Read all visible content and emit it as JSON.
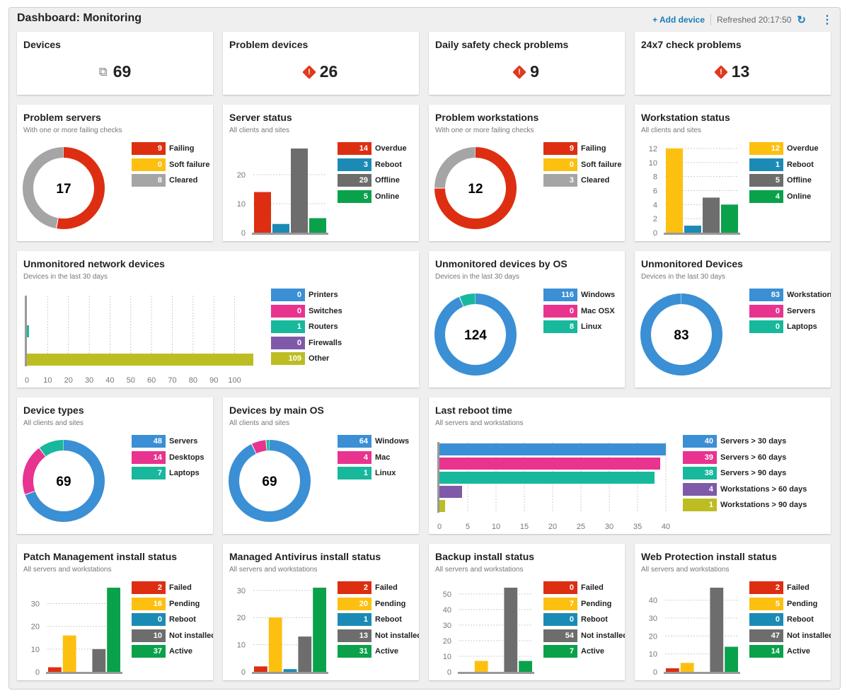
{
  "header": {
    "title": "Dashboard: Monitoring",
    "add_device": "+ Add device",
    "refreshed": "Refreshed 20:17:50",
    "refresh_icon": "refresh-icon",
    "menu_icon": "kebab-icon"
  },
  "colors": {
    "red": "#dd2e12",
    "yellow": "#fdc010",
    "teal_blue": "#1b8bb5",
    "gray": "#6d6d6d",
    "green": "#0aa14b",
    "light_gray": "#a5a5a5",
    "blue": "#3b8fd4",
    "pink": "#e8338f",
    "teal": "#17b89c",
    "purple": "#7e5aa8",
    "olive": "#bcbd22"
  },
  "widgets": [
    {
      "type": "stat",
      "title": "Devices",
      "icon": "devices-icon",
      "value": "69"
    },
    {
      "type": "stat",
      "title": "Problem devices",
      "icon": "warning-icon",
      "value": "26"
    },
    {
      "type": "stat",
      "title": "Daily safety check problems",
      "icon": "warning-icon",
      "value": "9"
    },
    {
      "type": "stat",
      "title": "24x7 check problems",
      "icon": "warning-icon",
      "value": "13"
    },
    {
      "type": "donut",
      "title": "Problem servers",
      "subtitle": "With one or more failing checks",
      "center": "17",
      "items": [
        {
          "label": "Failing",
          "value": 9,
          "color": "#dd2e12"
        },
        {
          "label": "Soft failure",
          "value": 0,
          "color": "#fdc010"
        },
        {
          "label": "Cleared",
          "value": 8,
          "color": "#a5a5a5"
        }
      ]
    },
    {
      "type": "vbar",
      "title": "Server status",
      "subtitle": "All clients and sites",
      "ticks": [
        0,
        10,
        20
      ],
      "items": [
        {
          "label": "Overdue",
          "value": 14,
          "color": "#dd2e12"
        },
        {
          "label": "Reboot",
          "value": 3,
          "color": "#1b8bb5"
        },
        {
          "label": "Offline",
          "value": 29,
          "color": "#6d6d6d"
        },
        {
          "label": "Online",
          "value": 5,
          "color": "#0aa14b"
        }
      ]
    },
    {
      "type": "donut",
      "title": "Problem workstations",
      "subtitle": "With one or more failing checks",
      "center": "12",
      "items": [
        {
          "label": "Failing",
          "value": 9,
          "color": "#dd2e12"
        },
        {
          "label": "Soft failure",
          "value": 0,
          "color": "#fdc010"
        },
        {
          "label": "Cleared",
          "value": 3,
          "color": "#a5a5a5"
        }
      ]
    },
    {
      "type": "vbar",
      "title": "Workstation status",
      "subtitle": "All clients and sites",
      "ticks": [
        0,
        2,
        4,
        6,
        8,
        10,
        12
      ],
      "items": [
        {
          "label": "Overdue",
          "value": 12,
          "color": "#fdc010"
        },
        {
          "label": "Reboot",
          "value": 1,
          "color": "#1b8bb5"
        },
        {
          "label": "Offline",
          "value": 5,
          "color": "#6d6d6d"
        },
        {
          "label": "Online",
          "value": 4,
          "color": "#0aa14b"
        }
      ]
    },
    {
      "type": "hbar",
      "title": "Unmonitored network devices",
      "subtitle": "Devices in the last 30 days",
      "xmax": 109,
      "ticks": [
        0,
        10,
        20,
        30,
        40,
        50,
        60,
        70,
        80,
        90,
        100
      ],
      "items": [
        {
          "label": "Printers",
          "value": 0,
          "color": "#3b8fd4"
        },
        {
          "label": "Switches",
          "value": 0,
          "color": "#e8338f"
        },
        {
          "label": "Routers",
          "value": 1,
          "color": "#17b89c"
        },
        {
          "label": "Firewalls",
          "value": 0,
          "color": "#7e5aa8"
        },
        {
          "label": "Other",
          "value": 109,
          "color": "#bcbd22"
        }
      ]
    },
    {
      "type": "donut",
      "title": "Unmonitored devices by OS",
      "subtitle": "Devices in the last 30 days",
      "center": "124",
      "items": [
        {
          "label": "Windows",
          "value": 116,
          "color": "#3b8fd4"
        },
        {
          "label": "Mac OSX",
          "value": 0,
          "color": "#e8338f"
        },
        {
          "label": "Linux",
          "value": 8,
          "color": "#17b89c"
        }
      ]
    },
    {
      "type": "donut",
      "title": "Unmonitored Devices",
      "subtitle": "Devices in the last 30 days",
      "center": "83",
      "items": [
        {
          "label": "Workstations",
          "value": 83,
          "color": "#3b8fd4"
        },
        {
          "label": "Servers",
          "value": 0,
          "color": "#e8338f"
        },
        {
          "label": "Laptops",
          "value": 0,
          "color": "#17b89c"
        }
      ]
    },
    {
      "type": "donut",
      "title": "Device types",
      "subtitle": "All clients and sites",
      "center": "69",
      "items": [
        {
          "label": "Servers",
          "value": 48,
          "color": "#3b8fd4"
        },
        {
          "label": "Desktops",
          "value": 14,
          "color": "#e8338f"
        },
        {
          "label": "Laptops",
          "value": 7,
          "color": "#17b89c"
        }
      ]
    },
    {
      "type": "donut",
      "title": "Devices by main OS",
      "subtitle": "All clients and sites",
      "center": "69",
      "items": [
        {
          "label": "Windows",
          "value": 64,
          "color": "#3b8fd4"
        },
        {
          "label": "Mac",
          "value": 4,
          "color": "#e8338f"
        },
        {
          "label": "Linux",
          "value": 1,
          "color": "#17b89c"
        }
      ]
    },
    {
      "type": "hbar",
      "title": "Last reboot time",
      "subtitle": "All servers and workstations",
      "xmax": 40,
      "ticks": [
        0,
        5,
        10,
        15,
        20,
        25,
        30,
        35,
        40
      ],
      "items": [
        {
          "label": "Servers > 30 days",
          "value": 40,
          "color": "#3b8fd4"
        },
        {
          "label": "Servers > 60 days",
          "value": 39,
          "color": "#e8338f"
        },
        {
          "label": "Servers > 90 days",
          "value": 38,
          "color": "#17b89c"
        },
        {
          "label": "Workstations > 60 days",
          "value": 4,
          "color": "#7e5aa8"
        },
        {
          "label": "Workstations > 90 days",
          "value": 1,
          "color": "#bcbd22"
        }
      ]
    },
    {
      "type": "vbar",
      "title": "Patch Management install status",
      "subtitle": "All servers and workstations",
      "ticks": [
        0,
        10,
        20,
        30
      ],
      "items": [
        {
          "label": "Failed",
          "value": 2,
          "color": "#dd2e12"
        },
        {
          "label": "Pending",
          "value": 16,
          "color": "#fdc010"
        },
        {
          "label": "Reboot",
          "value": 0,
          "color": "#1b8bb5"
        },
        {
          "label": "Not installed",
          "value": 10,
          "color": "#6d6d6d"
        },
        {
          "label": "Active",
          "value": 37,
          "color": "#0aa14b"
        }
      ]
    },
    {
      "type": "vbar",
      "title": "Managed Antivirus install status",
      "subtitle": "All servers and workstations",
      "ticks": [
        0,
        10,
        20,
        30
      ],
      "items": [
        {
          "label": "Failed",
          "value": 2,
          "color": "#dd2e12"
        },
        {
          "label": "Pending",
          "value": 20,
          "color": "#fdc010"
        },
        {
          "label": "Reboot",
          "value": 1,
          "color": "#1b8bb5"
        },
        {
          "label": "Not installed",
          "value": 13,
          "color": "#6d6d6d"
        },
        {
          "label": "Active",
          "value": 31,
          "color": "#0aa14b"
        }
      ]
    },
    {
      "type": "vbar",
      "title": "Backup install status",
      "subtitle": "All servers and workstations",
      "ticks": [
        0,
        10,
        20,
        30,
        40,
        50
      ],
      "items": [
        {
          "label": "Failed",
          "value": 0,
          "color": "#dd2e12"
        },
        {
          "label": "Pending",
          "value": 7,
          "color": "#fdc010"
        },
        {
          "label": "Reboot",
          "value": 0,
          "color": "#1b8bb5"
        },
        {
          "label": "Not installed",
          "value": 54,
          "color": "#6d6d6d"
        },
        {
          "label": "Active",
          "value": 7,
          "color": "#0aa14b"
        }
      ]
    },
    {
      "type": "vbar",
      "title": "Web Protection install status",
      "subtitle": "All servers and workstations",
      "ticks": [
        0,
        10,
        20,
        30,
        40
      ],
      "items": [
        {
          "label": "Failed",
          "value": 2,
          "color": "#dd2e12"
        },
        {
          "label": "Pending",
          "value": 5,
          "color": "#fdc010"
        },
        {
          "label": "Reboot",
          "value": 0,
          "color": "#1b8bb5"
        },
        {
          "label": "Not installed",
          "value": 47,
          "color": "#6d6d6d"
        },
        {
          "label": "Active",
          "value": 14,
          "color": "#0aa14b"
        }
      ]
    }
  ]
}
